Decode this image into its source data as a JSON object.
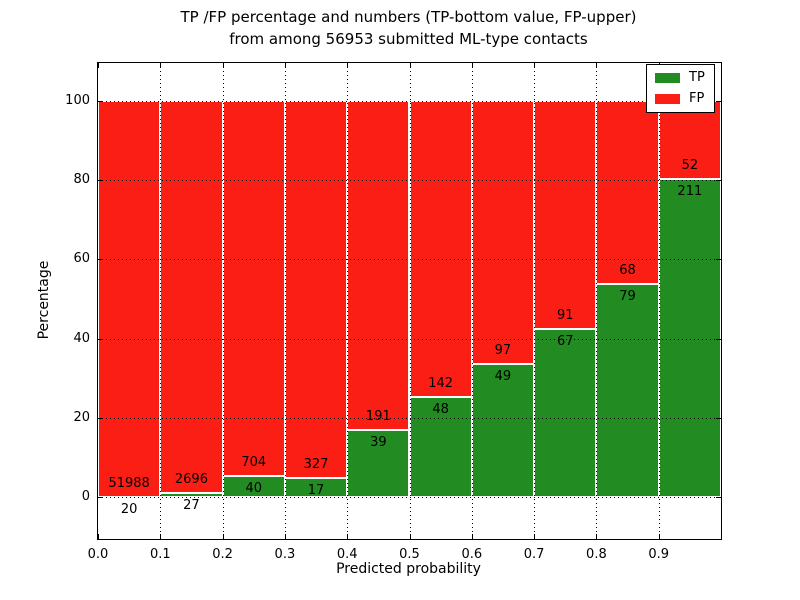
{
  "header": {
    "title_line1": "TP /FP percentage and numbers (TP-bottom value, FP-upper)",
    "title_line2": "from among 56953 submitted ML-type contacts"
  },
  "chart_data": {
    "type": "bar",
    "stacked": true,
    "title": "TP /FP percentage and numbers (TP-bottom value, FP-upper) from among 56953 submitted ML-type contacts",
    "xlabel": "Predicted probability",
    "ylabel": "Percentage",
    "total_submitted": 56953,
    "xlim": [
      0,
      1
    ],
    "ylim": [
      -10.5,
      109.5
    ],
    "x_tick_values": [
      0,
      0.1,
      0.2,
      0.3,
      0.4,
      0.5,
      0.6,
      0.7,
      0.8,
      0.9
    ],
    "x_tick_labels": [
      "0.0",
      "0.1",
      "0.2",
      "0.3",
      "0.4",
      "0.5",
      "0.6",
      "0.7",
      "0.8",
      "0.9"
    ],
    "y_tick_values": [
      0,
      20,
      40,
      60,
      80,
      100
    ],
    "y_tick_labels": [
      "0",
      "20",
      "40",
      "60",
      "80",
      "100"
    ],
    "grid": {
      "style": "dotted",
      "color": "#000000",
      "on": true
    },
    "colors": {
      "tp": "#228b22",
      "fp": "#fb1e14",
      "bar_edge": "#ffffff"
    },
    "legend": {
      "position": "upper right",
      "entries": [
        {
          "label": "TP",
          "color_key": "tp"
        },
        {
          "label": "FP",
          "color_key": "fp"
        }
      ]
    },
    "bins": [
      {
        "x0": 0.0,
        "x1": 0.1,
        "tp": 20,
        "fp": 51988,
        "tp_pct": 0.04
      },
      {
        "x0": 0.1,
        "x1": 0.2,
        "tp": 27,
        "fp": 2696,
        "tp_pct": 0.99
      },
      {
        "x0": 0.2,
        "x1": 0.3,
        "tp": 40,
        "fp": 704,
        "tp_pct": 5.38
      },
      {
        "x0": 0.3,
        "x1": 0.4,
        "tp": 17,
        "fp": 327,
        "tp_pct": 4.94
      },
      {
        "x0": 0.4,
        "x1": 0.5,
        "tp": 39,
        "fp": 191,
        "tp_pct": 16.96
      },
      {
        "x0": 0.5,
        "x1": 0.6,
        "tp": 48,
        "fp": 142,
        "tp_pct": 25.26
      },
      {
        "x0": 0.6,
        "x1": 0.7,
        "tp": 49,
        "fp": 97,
        "tp_pct": 33.56
      },
      {
        "x0": 0.7,
        "x1": 0.8,
        "tp": 67,
        "fp": 91,
        "tp_pct": 42.41
      },
      {
        "x0": 0.8,
        "x1": 0.9,
        "tp": 79,
        "fp": 68,
        "tp_pct": 53.74
      },
      {
        "x0": 0.9,
        "x1": 1.0,
        "tp": 211,
        "fp": 52,
        "tp_pct": 80.23
      }
    ]
  }
}
